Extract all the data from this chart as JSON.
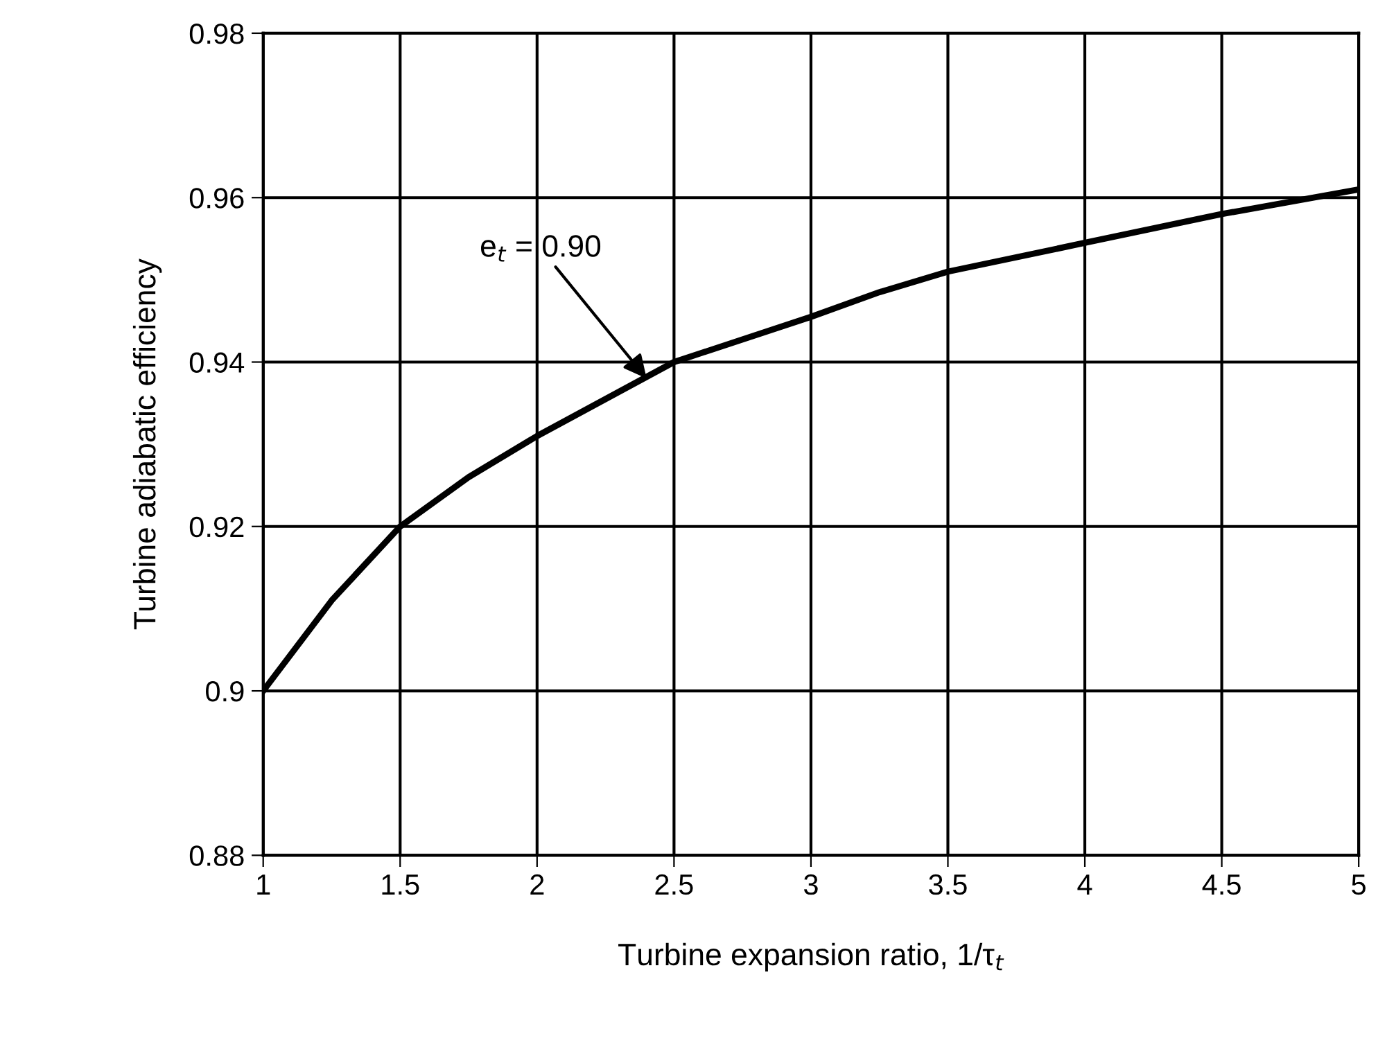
{
  "chart_data": {
    "type": "line",
    "xlabel": "Turbine expansion ratio, 1/τ$_{t}$",
    "ylabel": "Turbine adiabatic efficiency",
    "x": [
      1,
      1.25,
      1.5,
      1.75,
      2,
      2.5,
      3,
      3.25,
      3.5,
      4,
      4.5,
      5
    ],
    "series": [
      {
        "color": "#000000",
        "values": [
          0.9,
          0.911,
          0.92,
          0.926,
          0.931,
          0.94,
          0.9455,
          0.9485,
          0.951,
          0.9545,
          0.958,
          0.961
        ]
      }
    ],
    "xlim": [
      1,
      5
    ],
    "xticks": [
      1,
      1.5,
      2,
      2.5,
      3,
      3.5,
      4,
      4.5,
      5
    ],
    "ylim": [
      0.88,
      0.98
    ],
    "yticks": [
      0.88,
      0.9,
      0.92,
      0.94,
      0.96,
      0.98
    ],
    "grid": true,
    "marker": "none",
    "line_style": "solid",
    "annotations": [
      {
        "text": "e$_{t}$ = 0.90",
        "x": 2.4,
        "y": 0.938
      }
    ]
  }
}
